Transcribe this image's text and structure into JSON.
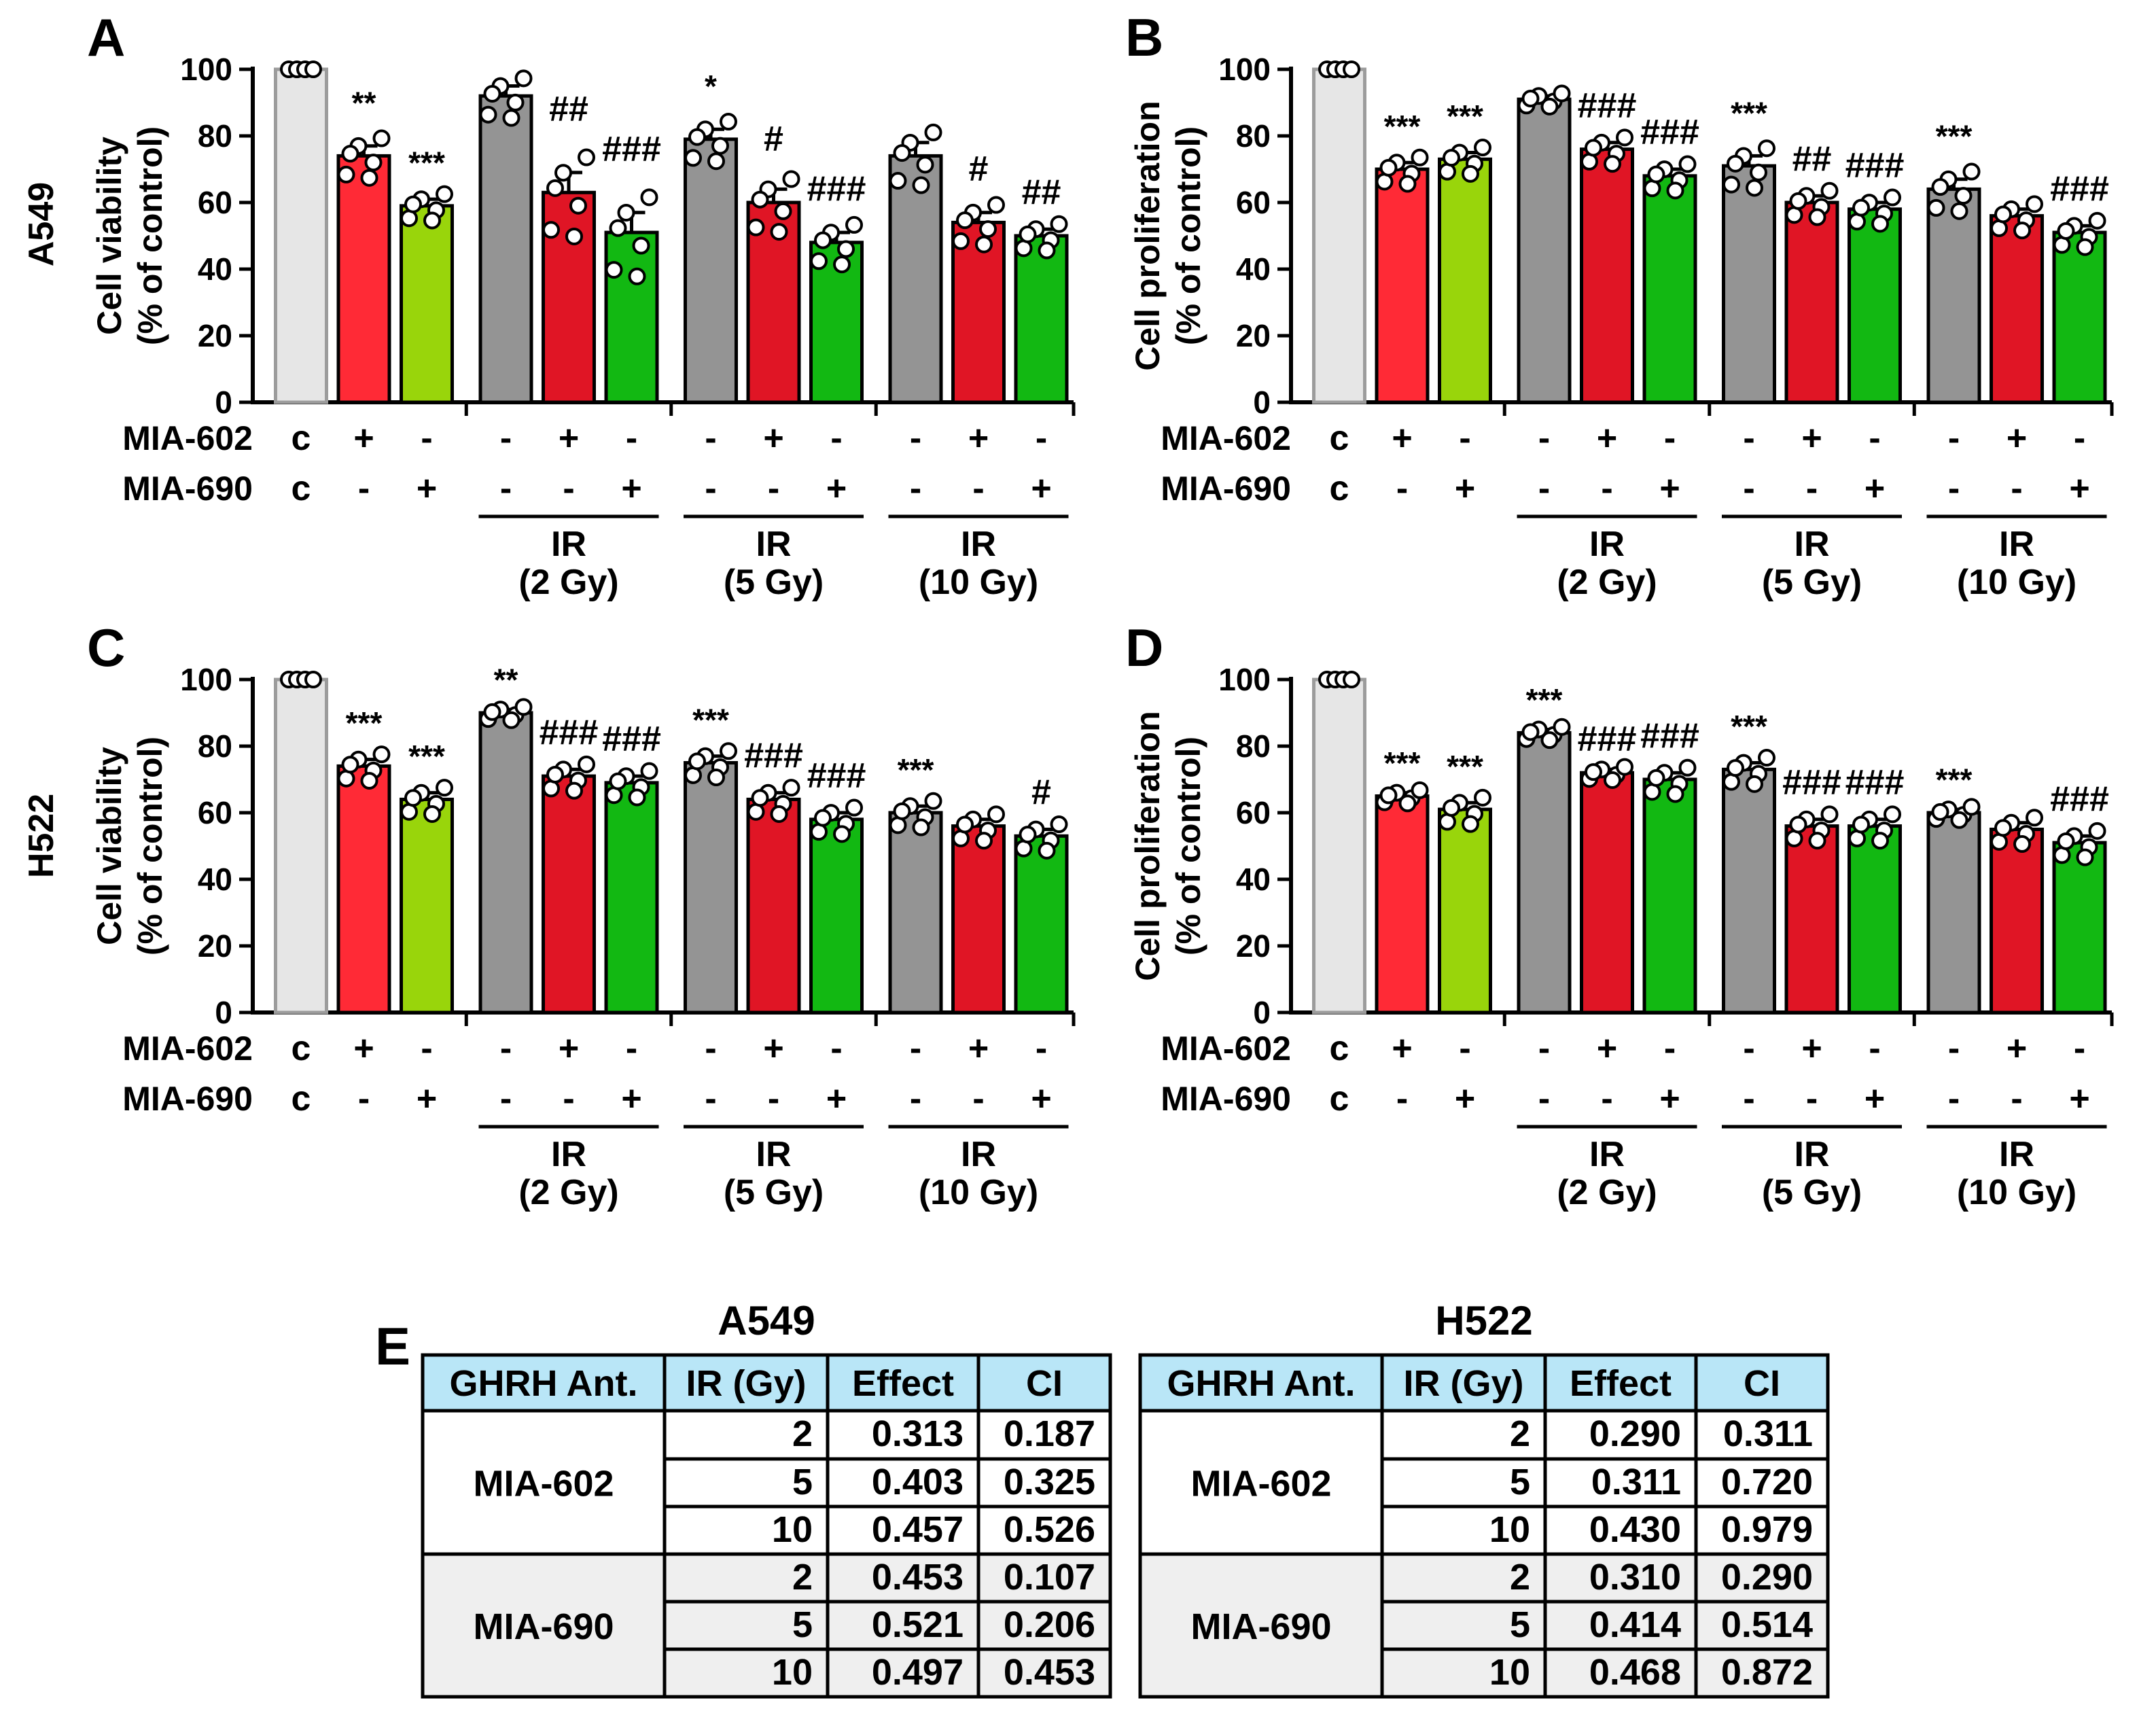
{
  "colors": {
    "control": "#e6e6e6",
    "control_edge": "#9c9c9c",
    "mia602": "#ff2a36",
    "mia690": "#99d50b",
    "ir": "#949494",
    "ir_mia602": "#e01525",
    "ir_mia690": "#12b812",
    "table_header": "#b9e6f7",
    "table_shaded": "#efefef"
  },
  "side_labels": [
    "A549",
    "H522"
  ],
  "row_labels": {
    "mia602": "MIA-602",
    "mia690": "MIA-690"
  },
  "treatments": {
    "mia602": [
      "c",
      "+",
      "-",
      "-",
      "+",
      "-",
      "-",
      "+",
      "-",
      "-",
      "+",
      "-"
    ],
    "mia690": [
      "c",
      "-",
      "+",
      "-",
      "-",
      "+",
      "-",
      "-",
      "+",
      "-",
      "-",
      "+"
    ]
  },
  "ir_groups": [
    {
      "line1": "IR",
      "line2": "(2 Gy)"
    },
    {
      "line1": "IR",
      "line2": "(5 Gy)"
    },
    {
      "line1": "IR",
      "line2": "(10 Gy)"
    }
  ],
  "chart_data": [
    {
      "panel": "A",
      "type": "bar",
      "ylabel_line1": "Cell viability",
      "ylabel_line2": "(% of control)",
      "ylim": [
        0,
        100
      ],
      "yticks": [
        "0",
        "20",
        "40",
        "60",
        "80",
        "100"
      ],
      "values": [
        100,
        74,
        59,
        92,
        63,
        51,
        79,
        60,
        48,
        74,
        54,
        50
      ],
      "errors": [
        0,
        3,
        2,
        3,
        6,
        6,
        3,
        4,
        3,
        4,
        3,
        2
      ],
      "annotations": [
        "",
        "**",
        "***",
        "",
        "##",
        "###",
        "*",
        "#",
        "###",
        "",
        "#",
        "##"
      ]
    },
    {
      "panel": "B",
      "type": "bar",
      "ylabel_line1": "Cell proliferation",
      "ylabel_line2": "(% of control)",
      "ylim": [
        0,
        100
      ],
      "yticks": [
        "0",
        "20",
        "40",
        "60",
        "80",
        "100"
      ],
      "values": [
        100,
        70,
        73,
        91,
        76,
        68,
        71,
        60,
        58,
        64,
        56,
        51
      ],
      "errors": [
        0,
        2,
        2,
        1,
        2,
        2,
        3,
        2,
        2,
        3,
        2,
        2
      ],
      "annotations": [
        "",
        "***",
        "***",
        "",
        "###",
        "###",
        "***",
        "##",
        "###",
        "***",
        "",
        "###"
      ]
    },
    {
      "panel": "C",
      "type": "bar",
      "ylabel_line1": "Cell viability",
      "ylabel_line2": "(% of control)",
      "ylim": [
        0,
        100
      ],
      "yticks": [
        "0",
        "20",
        "40",
        "60",
        "80",
        "100"
      ],
      "values": [
        100,
        74,
        64,
        90,
        71,
        69,
        75,
        64,
        58,
        60,
        56,
        53
      ],
      "errors": [
        0,
        2,
        2,
        1,
        2,
        2,
        2,
        2,
        2,
        2,
        2,
        2
      ],
      "annotations": [
        "",
        "***",
        "***",
        "**",
        "###",
        "###",
        "***",
        "###",
        "###",
        "***",
        "",
        "#"
      ]
    },
    {
      "panel": "D",
      "type": "bar",
      "ylabel_line1": "Cell proliferation",
      "ylabel_line2": "(% of control)",
      "ylim": [
        0,
        100
      ],
      "yticks": [
        "0",
        "20",
        "40",
        "60",
        "80",
        "100"
      ],
      "values": [
        100,
        65,
        61,
        84,
        72,
        70,
        73,
        56,
        56,
        60,
        55,
        51
      ],
      "errors": [
        0,
        1,
        2,
        1,
        1,
        2,
        2,
        2,
        2,
        1,
        2,
        2
      ],
      "annotations": [
        "",
        "***",
        "***",
        "***",
        "###",
        "###",
        "***",
        "###",
        "###",
        "***",
        "",
        "###"
      ]
    }
  ],
  "table_panel_letter": "E",
  "tables": [
    {
      "title": "A549",
      "headers": [
        "GHRH Ant.",
        "IR (Gy)",
        "Effect",
        "CI"
      ],
      "groups": [
        {
          "name": "MIA-602",
          "rows": [
            [
              "2",
              "0.313",
              "0.187"
            ],
            [
              "5",
              "0.403",
              "0.325"
            ],
            [
              "10",
              "0.457",
              "0.526"
            ]
          ]
        },
        {
          "name": "MIA-690",
          "rows": [
            [
              "2",
              "0.453",
              "0.107"
            ],
            [
              "5",
              "0.521",
              "0.206"
            ],
            [
              "10",
              "0.497",
              "0.453"
            ]
          ]
        }
      ]
    },
    {
      "title": "H522",
      "headers": [
        "GHRH Ant.",
        "IR (Gy)",
        "Effect",
        "CI"
      ],
      "groups": [
        {
          "name": "MIA-602",
          "rows": [
            [
              "2",
              "0.290",
              "0.311"
            ],
            [
              "5",
              "0.311",
              "0.720"
            ],
            [
              "10",
              "0.430",
              "0.979"
            ]
          ]
        },
        {
          "name": "MIA-690",
          "rows": [
            [
              "2",
              "0.310",
              "0.290"
            ],
            [
              "5",
              "0.414",
              "0.514"
            ],
            [
              "10",
              "0.468",
              "0.872"
            ]
          ]
        }
      ]
    }
  ]
}
